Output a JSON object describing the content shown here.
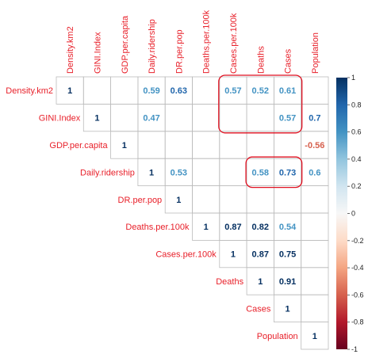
{
  "chart_data": {
    "type": "heatmap",
    "variables": [
      "Density.km2",
      "GINI.Index",
      "GDP.per.capita",
      "Daily.ridership",
      "DR.per.pop",
      "Deaths.per.100k",
      "Cases.per.100k",
      "Deaths",
      "Cases",
      "Population"
    ],
    "cells": [
      {
        "row": 0,
        "col": 0,
        "value": 1,
        "label": "1"
      },
      {
        "row": 0,
        "col": 3,
        "value": 0.59,
        "label": "0.59"
      },
      {
        "row": 0,
        "col": 4,
        "value": 0.63,
        "label": "0.63"
      },
      {
        "row": 0,
        "col": 6,
        "value": 0.57,
        "label": "0.57"
      },
      {
        "row": 0,
        "col": 7,
        "value": 0.52,
        "label": "0.52"
      },
      {
        "row": 0,
        "col": 8,
        "value": 0.61,
        "label": "0.61"
      },
      {
        "row": 1,
        "col": 1,
        "value": 1,
        "label": "1"
      },
      {
        "row": 1,
        "col": 3,
        "value": 0.47,
        "label": "0.47"
      },
      {
        "row": 1,
        "col": 8,
        "value": 0.57,
        "label": "0.57"
      },
      {
        "row": 1,
        "col": 9,
        "value": 0.7,
        "label": "0.7"
      },
      {
        "row": 2,
        "col": 2,
        "value": 1,
        "label": "1"
      },
      {
        "row": 2,
        "col": 9,
        "value": -0.56,
        "label": "-0.56"
      },
      {
        "row": 3,
        "col": 3,
        "value": 1,
        "label": "1"
      },
      {
        "row": 3,
        "col": 4,
        "value": 0.53,
        "label": "0.53"
      },
      {
        "row": 3,
        "col": 7,
        "value": 0.58,
        "label": "0.58"
      },
      {
        "row": 3,
        "col": 8,
        "value": 0.73,
        "label": "0.73"
      },
      {
        "row": 3,
        "col": 9,
        "value": 0.6,
        "label": "0.6"
      },
      {
        "row": 4,
        "col": 4,
        "value": 1,
        "label": "1"
      },
      {
        "row": 5,
        "col": 5,
        "value": 1,
        "label": "1"
      },
      {
        "row": 5,
        "col": 6,
        "value": 0.87,
        "label": "0.87"
      },
      {
        "row": 5,
        "col": 7,
        "value": 0.82,
        "label": "0.82"
      },
      {
        "row": 5,
        "col": 8,
        "value": 0.54,
        "label": "0.54"
      },
      {
        "row": 6,
        "col": 6,
        "value": 1,
        "label": "1"
      },
      {
        "row": 6,
        "col": 7,
        "value": 0.87,
        "label": "0.87"
      },
      {
        "row": 6,
        "col": 8,
        "value": 0.75,
        "label": "0.75"
      },
      {
        "row": 7,
        "col": 7,
        "value": 1,
        "label": "1"
      },
      {
        "row": 7,
        "col": 8,
        "value": 0.91,
        "label": "0.91"
      },
      {
        "row": 8,
        "col": 8,
        "value": 1,
        "label": "1"
      },
      {
        "row": 9,
        "col": 9,
        "value": 1,
        "label": "1"
      }
    ],
    "highlight_boxes": [
      {
        "row_from": 0,
        "row_to": 1,
        "col_from": 6,
        "col_to": 8
      },
      {
        "row_from": 3,
        "row_to": 3,
        "col_from": 7,
        "col_to": 8
      }
    ],
    "colorbar": {
      "range": [
        -1,
        1
      ],
      "ticks": [
        "1",
        "0.8",
        "0.6",
        "0.4",
        "0.2",
        "0",
        "-0.2",
        "-0.4",
        "-0.6",
        "-0.8",
        "-1"
      ],
      "colors": {
        "negative": "#67001f",
        "mid": "#f7f7f7",
        "positive": "#053061"
      }
    },
    "colors": {
      "label": "#e8202a",
      "grid": "#bbbbbb",
      "highlight": "#e01020",
      "text_light": "#4393c3",
      "text_dark": "#053061",
      "text_negative": "#d6604d"
    },
    "grid": true
  }
}
